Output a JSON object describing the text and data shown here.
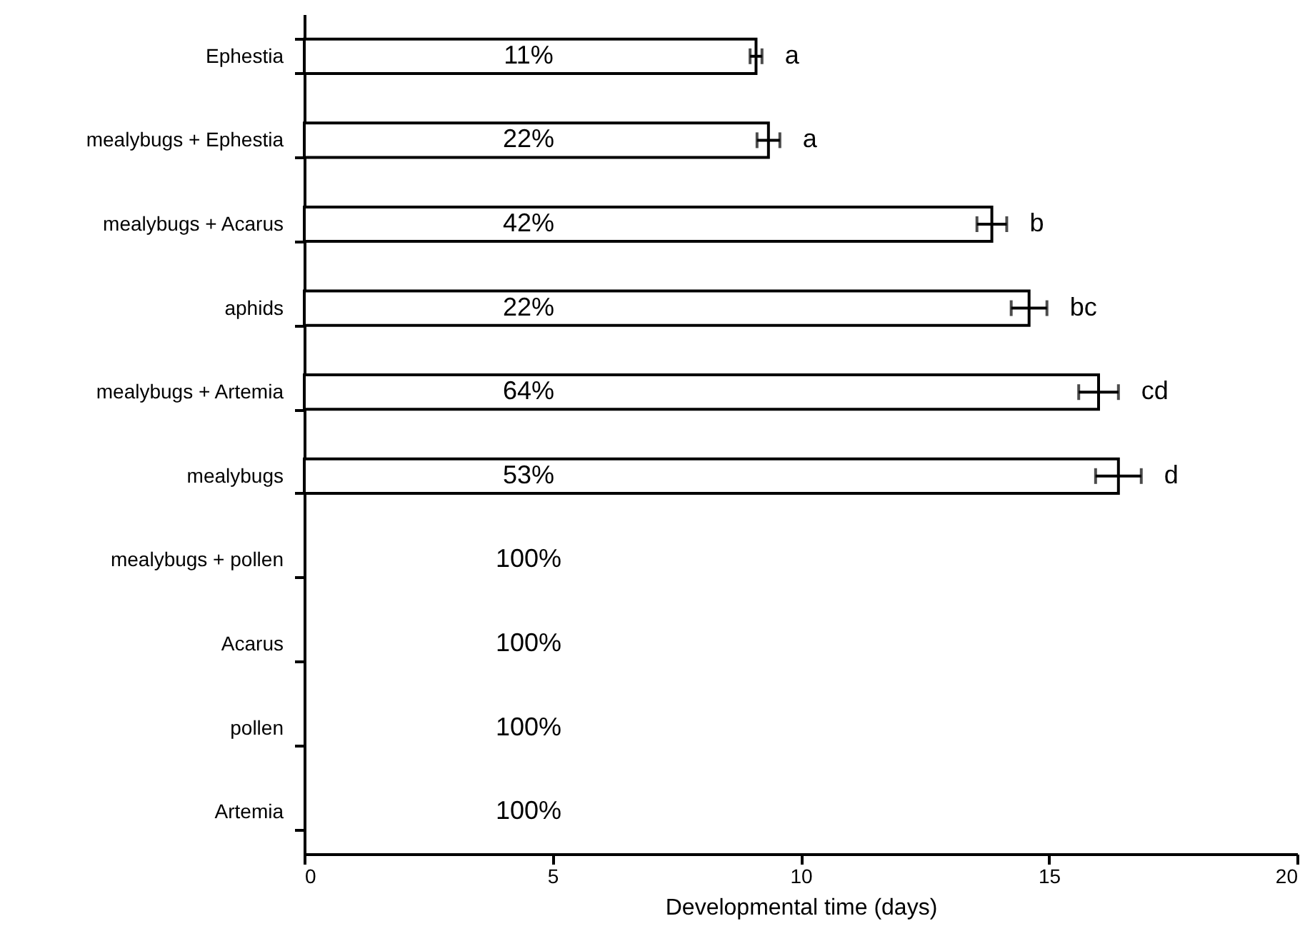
{
  "chart_data": {
    "type": "bar",
    "orientation": "horizontal",
    "xlabel": "Developmental time (days)",
    "categories": [
      "Ephestia",
      "mealybugs + Ephestia",
      "mealybugs + Acarus",
      "aphids",
      "mealybugs + Artemia",
      "mealybugs",
      "mealybugs + pollen",
      "Acarus",
      "pollen",
      "Artemia"
    ],
    "values": [
      9.1,
      9.35,
      13.85,
      14.6,
      16.0,
      16.4,
      null,
      null,
      null,
      null
    ],
    "errors": [
      0.12,
      0.23,
      0.3,
      0.36,
      0.4,
      0.46,
      null,
      null,
      null,
      null
    ],
    "color": "#ffffff",
    "xlim": [
      0,
      20
    ],
    "xticks": [
      0,
      5,
      10,
      15,
      20
    ],
    "annotations": [
      "11%",
      "22%",
      "42%",
      "22%",
      "64%",
      "53%",
      "100%",
      "100%",
      "100%",
      "100%",
      "a",
      "a",
      "b",
      "bc",
      "cd",
      "d"
    ]
  }
}
